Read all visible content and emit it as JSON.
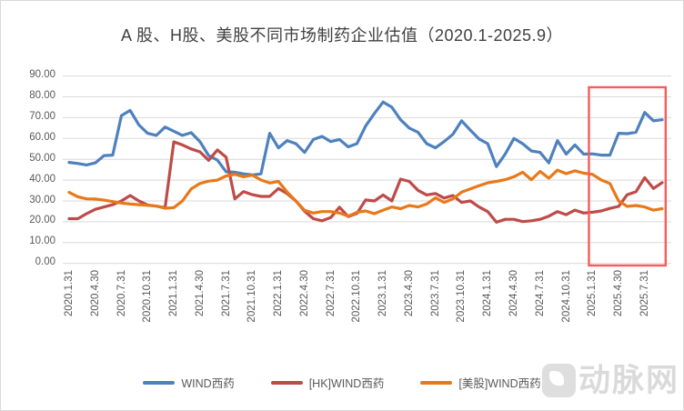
{
  "title": "A 股、H股、美股不同市场制药企业估值（2020.1-2025.9）",
  "watermark": {
    "text": "动脉网"
  },
  "colors": {
    "grid": "#D9D9D9",
    "axis_text": "#595959",
    "title_text": "#404040",
    "highlight_box": "#F85B5B"
  },
  "chart_data": {
    "type": "line",
    "title": "A 股、H股、美股不同市场制药企业估值（2020.1-2025.9）",
    "xlabel": "",
    "ylabel": "",
    "ylim": [
      0,
      90
    ],
    "y_tick_step": 10,
    "y_tick_labels": [
      "0.00",
      "10.00",
      "20.00",
      "30.00",
      "40.00",
      "50.00",
      "60.00",
      "70.00",
      "80.00",
      "90.00"
    ],
    "grid": true,
    "legend_position": "bottom",
    "x_months_total": 69,
    "x_first_month": "2020.1",
    "x_last_month": "2025.9",
    "x_tick_every_n_months": 3,
    "x_tick_labels": [
      "2020.1.31",
      "2020.4.30",
      "2020.7.31",
      "2020.10.31",
      "2021.1.31",
      "2021.4.30",
      "2021.7.31",
      "2021.10.31",
      "2022.1.31",
      "2022.4.30",
      "2022.7.31",
      "2022.10.31",
      "2023.1.31",
      "2023.4.30",
      "2023.7.31",
      "2023.10.31",
      "2024.1.31",
      "2024.4.30",
      "2024.7.31",
      "2024.10.31",
      "2025.1.31",
      "2025.4.30",
      "2025.7.31"
    ],
    "series": [
      {
        "name": "WIND西药",
        "market": "A股",
        "color": "#4E81BD",
        "values": [
          48.5,
          48.0,
          47.3,
          48.3,
          51.8,
          52.0,
          71.0,
          73.5,
          66.5,
          62.5,
          61.5,
          65.5,
          63.5,
          61.5,
          62.8,
          58.5,
          51.8,
          49.6,
          44.0,
          43.8,
          43.0,
          42.5,
          43.0,
          62.5,
          55.5,
          59.0,
          57.5,
          53.3,
          59.5,
          61.0,
          58.5,
          59.5,
          56.0,
          57.5,
          66.0,
          72.0,
          77.5,
          75.0,
          69.0,
          65.0,
          63.0,
          57.5,
          55.5,
          58.5,
          62.0,
          68.5,
          64.0,
          59.8,
          57.5,
          46.5,
          52.5,
          60.0,
          57.5,
          54.0,
          53.3,
          48.3,
          59.0,
          52.5,
          56.9,
          52.5,
          52.6,
          52.0,
          52.0,
          62.5,
          62.3,
          63.0,
          72.5,
          68.5,
          69.0
        ]
      },
      {
        "name": "[HK]WIND西药",
        "market": "H股",
        "color": "#BE4B48",
        "values": [
          21.5,
          21.5,
          23.9,
          26.0,
          27.1,
          28.2,
          30.0,
          32.6,
          30.0,
          28.1,
          27.5,
          26.8,
          58.4,
          56.9,
          55.0,
          53.6,
          49.5,
          54.5,
          51.0,
          31.0,
          34.5,
          33.0,
          32.2,
          32.2,
          36.0,
          33.5,
          30.0,
          25.0,
          21.5,
          20.5,
          22.0,
          27.0,
          22.5,
          24.0,
          30.5,
          30.0,
          32.9,
          30.0,
          40.5,
          39.4,
          35.1,
          32.9,
          33.6,
          31.4,
          32.6,
          29.3,
          30.0,
          27.1,
          24.9,
          19.8,
          21.2,
          21.2,
          20.1,
          20.5,
          21.2,
          22.7,
          24.9,
          23.4,
          25.6,
          24.2,
          24.6,
          25.2,
          26.4,
          27.4,
          33.0,
          34.4,
          41.2,
          36.0,
          38.8
        ]
      },
      {
        "name": "[美股]WIND西药",
        "market": "美股",
        "color": "#E8791A",
        "values": [
          34.1,
          32.0,
          31.0,
          30.9,
          30.4,
          29.7,
          29.0,
          28.5,
          28.2,
          27.9,
          27.5,
          26.5,
          26.8,
          30.0,
          35.8,
          38.4,
          39.5,
          40.0,
          42.0,
          42.8,
          41.6,
          42.4,
          40.1,
          38.6,
          39.4,
          34.3,
          30.0,
          25.5,
          24.2,
          24.9,
          24.9,
          24.2,
          22.7,
          24.5,
          25.2,
          23.9,
          25.6,
          27.1,
          26.3,
          27.8,
          27.1,
          28.5,
          31.5,
          29.3,
          31.0,
          34.3,
          35.8,
          37.3,
          38.7,
          39.4,
          40.2,
          41.6,
          43.8,
          40.2,
          44.2,
          40.9,
          44.8,
          43.1,
          44.5,
          43.3,
          42.8,
          40.1,
          38.4,
          30.0,
          27.4,
          27.8,
          27.1,
          25.6,
          26.3
        ]
      }
    ],
    "annotation": {
      "shape": "rect",
      "stroke": "#F85B5B",
      "highlight_months": "2025.1-2025.9",
      "x_month_range": [
        59.6,
        68.4
      ],
      "y_value_range": [
        -1.0,
        84.6
      ]
    }
  }
}
